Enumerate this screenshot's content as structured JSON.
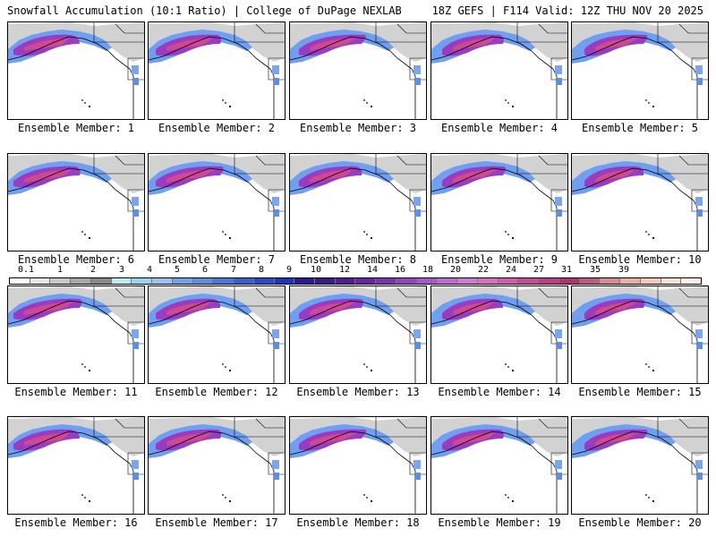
{
  "header": {
    "left": "Snowfall Accumulation (10:1 Ratio) | College of DuPage NEXLAB",
    "right": "18Z GEFS | F114 Valid: 12Z THU NOV 20 2025"
  },
  "panels": [
    {
      "label": "Ensemble Member: 1"
    },
    {
      "label": "Ensemble Member: 2"
    },
    {
      "label": "Ensemble Member: 3"
    },
    {
      "label": "Ensemble Member: 4"
    },
    {
      "label": "Ensemble Member: 5"
    },
    {
      "label": "Ensemble Member: 6"
    },
    {
      "label": "Ensemble Member: 7"
    },
    {
      "label": "Ensemble Member: 8"
    },
    {
      "label": "Ensemble Member: 9"
    },
    {
      "label": "Ensemble Member: 10"
    },
    {
      "label": "Ensemble Member: 11"
    },
    {
      "label": "Ensemble Member: 12"
    },
    {
      "label": "Ensemble Member: 13"
    },
    {
      "label": "Ensemble Member: 14"
    },
    {
      "label": "Ensemble Member: 15"
    },
    {
      "label": "Ensemble Member: 16"
    },
    {
      "label": "Ensemble Member: 17"
    },
    {
      "label": "Ensemble Member: 18"
    },
    {
      "label": "Ensemble Member: 19"
    },
    {
      "label": "Ensemble Member: 20"
    }
  ],
  "colorbar": {
    "labels": [
      "0.1",
      "1",
      "2",
      "3",
      "4",
      "5",
      "6",
      "7",
      "8",
      "9",
      "10",
      "12",
      "14",
      "16",
      "18",
      "20",
      "22",
      "24",
      "27",
      "31",
      "35",
      "39"
    ],
    "colors": [
      "#ffffff",
      "#e6e6e6",
      "#c8c8c8",
      "#a8a8a8",
      "#8a8a8a",
      "#b8ecf2",
      "#8fd8ee",
      "#9cc2f2",
      "#6ea4ec",
      "#5a8ee8",
      "#4878e0",
      "#3660d8",
      "#2848d0",
      "#1a34c0",
      "#2a1a98",
      "#3c1a8c",
      "#521c96",
      "#6a22a6",
      "#8030b4",
      "#9444c0",
      "#a858cc",
      "#be6ad4",
      "#d07ad8",
      "#dc6ec4",
      "#d85ab0",
      "#cc4898",
      "#c03a84",
      "#b43070",
      "#c05c80",
      "#d88a96",
      "#e8b0aa",
      "#f2cab6",
      "#f8e0d0",
      "#fcefe6"
    ]
  }
}
